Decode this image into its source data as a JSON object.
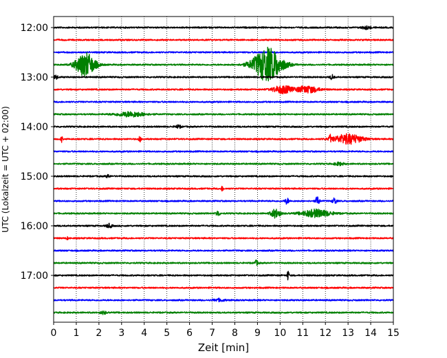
{
  "chart_data": {
    "type": "line",
    "title": "",
    "xlabel": "Zeit  [min]",
    "ylabel": "UTC (Lokalzeit = UTC + 02:00)",
    "xlim": [
      0,
      15
    ],
    "x_ticks": [
      "0",
      "1",
      "2",
      "3",
      "4",
      "5",
      "6",
      "7",
      "8",
      "9",
      "10",
      "11",
      "12",
      "13",
      "14",
      "15"
    ],
    "y_tick_labels": [
      "12:00",
      "13:00",
      "14:00",
      "15:00",
      "16:00",
      "17:00"
    ],
    "grid": "vertical dotted",
    "colors": [
      "#000000",
      "#ff0000",
      "#0000ff",
      "#008000"
    ],
    "trace_interval_min": 15,
    "traces": [
      {
        "start": "12:00",
        "color": "#000000",
        "events": [
          {
            "t": 13.8,
            "amp": 0.3,
            "dur": 0.5
          }
        ]
      },
      {
        "start": "12:15",
        "color": "#ff0000",
        "events": []
      },
      {
        "start": "12:30",
        "color": "#0000ff",
        "events": []
      },
      {
        "start": "12:45",
        "color": "#008000",
        "events": [
          {
            "t": 1.4,
            "amp": 2.5,
            "dur": 1.0
          },
          {
            "t": 9.45,
            "amp": 3.5,
            "dur": 1.5
          }
        ]
      },
      {
        "start": "13:00",
        "color": "#000000",
        "events": [
          {
            "t": 0.1,
            "amp": 0.4,
            "dur": 0.2
          },
          {
            "t": 12.3,
            "amp": 0.5,
            "dur": 0.2
          }
        ]
      },
      {
        "start": "13:15",
        "color": "#ff0000",
        "events": [
          {
            "t": 10.1,
            "amp": 0.8,
            "dur": 1.0
          },
          {
            "t": 11.2,
            "amp": 0.7,
            "dur": 1.2
          }
        ]
      },
      {
        "start": "13:30",
        "color": "#0000ff",
        "events": []
      },
      {
        "start": "13:45",
        "color": "#008000",
        "events": [
          {
            "t": 3.4,
            "amp": 0.5,
            "dur": 1.5
          }
        ]
      },
      {
        "start": "14:00",
        "color": "#000000",
        "events": [
          {
            "t": 5.5,
            "amp": 0.3,
            "dur": 0.3
          }
        ]
      },
      {
        "start": "14:15",
        "color": "#ff0000",
        "events": [
          {
            "t": 0.35,
            "amp": 0.6,
            "dur": 0.1
          },
          {
            "t": 3.8,
            "amp": 0.8,
            "dur": 0.1
          },
          {
            "t": 12.2,
            "amp": 0.8,
            "dur": 0.1
          },
          {
            "t": 13.0,
            "amp": 1.0,
            "dur": 1.5
          }
        ]
      },
      {
        "start": "14:30",
        "color": "#0000ff",
        "events": []
      },
      {
        "start": "14:45",
        "color": "#008000",
        "events": [
          {
            "t": 12.6,
            "amp": 0.3,
            "dur": 0.5
          }
        ]
      },
      {
        "start": "15:00",
        "color": "#000000",
        "events": [
          {
            "t": 2.4,
            "amp": 0.3,
            "dur": 0.2
          }
        ]
      },
      {
        "start": "15:15",
        "color": "#ff0000",
        "events": [
          {
            "t": 7.45,
            "amp": 0.6,
            "dur": 0.1
          }
        ]
      },
      {
        "start": "15:30",
        "color": "#0000ff",
        "events": [
          {
            "t": 10.3,
            "amp": 0.6,
            "dur": 0.2
          },
          {
            "t": 11.65,
            "amp": 0.9,
            "dur": 0.2
          },
          {
            "t": 12.4,
            "amp": 0.7,
            "dur": 0.2
          }
        ]
      },
      {
        "start": "15:45",
        "color": "#008000",
        "events": [
          {
            "t": 7.25,
            "amp": 0.6,
            "dur": 0.2
          },
          {
            "t": 9.8,
            "amp": 0.9,
            "dur": 0.5
          },
          {
            "t": 11.6,
            "amp": 0.8,
            "dur": 1.5
          }
        ]
      },
      {
        "start": "16:00",
        "color": "#000000",
        "events": [
          {
            "t": 2.45,
            "amp": 0.4,
            "dur": 0.3
          }
        ]
      },
      {
        "start": "16:15",
        "color": "#ff0000",
        "events": [
          {
            "t": 0.6,
            "amp": 0.3,
            "dur": 0.1
          }
        ]
      },
      {
        "start": "16:30",
        "color": "#0000ff",
        "events": []
      },
      {
        "start": "16:45",
        "color": "#008000",
        "events": [
          {
            "t": 8.95,
            "amp": 0.5,
            "dur": 0.2
          }
        ]
      },
      {
        "start": "17:00",
        "color": "#000000",
        "events": [
          {
            "t": 10.35,
            "amp": 1.0,
            "dur": 0.1
          }
        ]
      },
      {
        "start": "17:15",
        "color": "#ff0000",
        "events": []
      },
      {
        "start": "17:30",
        "color": "#0000ff",
        "events": [
          {
            "t": 7.3,
            "amp": 0.25,
            "dur": 0.6
          }
        ]
      },
      {
        "start": "17:45",
        "color": "#008000",
        "events": [
          {
            "t": 2.2,
            "amp": 0.3,
            "dur": 0.3
          }
        ]
      }
    ]
  }
}
